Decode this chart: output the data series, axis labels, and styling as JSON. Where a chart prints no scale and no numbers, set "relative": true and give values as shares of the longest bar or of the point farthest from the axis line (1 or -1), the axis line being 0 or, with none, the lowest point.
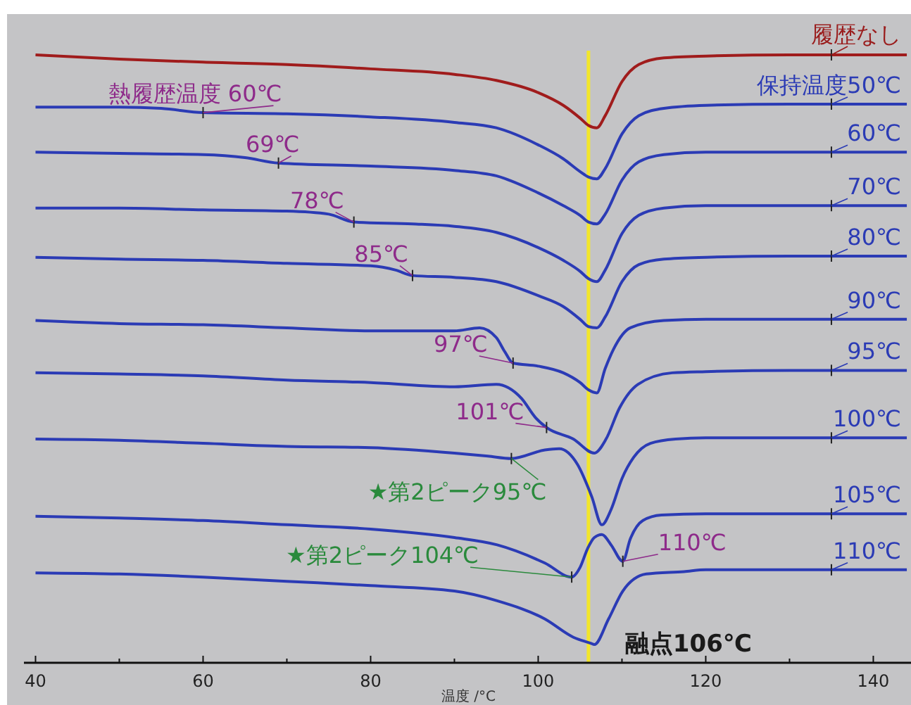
{
  "chart_data": {
    "type": "line",
    "relative": true,
    "xlabel": "温度 /°C",
    "xlim": [
      36.6,
      144.5
    ],
    "xticks": [
      40,
      {
        "value": 50,
        "label": null
      },
      60,
      {
        "value": 70,
        "label": null
      },
      80,
      {
        "value": 90,
        "label": null
      },
      100,
      {
        "value": 110,
        "label": null
      },
      120,
      {
        "value": 130,
        "label": null
      },
      140
    ],
    "grid": false,
    "marker": "none",
    "line_style": "solid",
    "ref_lines": [
      {
        "axis": "x",
        "value": 106,
        "label": "融点106℃",
        "color": "#f2e62a"
      }
    ],
    "series": [
      {
        "color": "#a01c1c",
        "x": [
          40,
          50,
          60,
          70,
          80,
          90,
          95,
          100,
          103,
          105,
          106,
          107,
          108,
          110,
          112,
          115,
          120,
          130,
          140,
          144
        ],
        "values": [
          1.0,
          0.993,
          0.988,
          0.984,
          0.977,
          0.968,
          0.958,
          0.938,
          0.917,
          0.896,
          0.884,
          0.88,
          0.9,
          0.956,
          0.984,
          0.995,
          0.998,
          1.0,
          1.0,
          1.0
        ]
      },
      {
        "color": "#2b3bb5",
        "x": [
          40,
          50,
          55,
          60,
          70,
          80,
          90,
          95,
          100,
          103,
          105,
          106,
          107,
          108,
          110,
          112,
          115,
          120,
          130,
          140,
          144
        ],
        "values": [
          0.914,
          0.914,
          0.912,
          0.905,
          0.903,
          0.898,
          0.889,
          0.88,
          0.852,
          0.829,
          0.808,
          0.799,
          0.796,
          0.813,
          0.87,
          0.9,
          0.912,
          0.917,
          0.919,
          0.919,
          0.919
        ]
      },
      {
        "color": "#2b3bb5",
        "x": [
          40,
          50,
          60,
          65,
          69,
          80,
          90,
          95,
          100,
          103,
          105,
          106,
          107,
          108,
          110,
          112,
          115,
          120,
          130,
          140,
          144
        ],
        "values": [
          0.84,
          0.838,
          0.836,
          0.831,
          0.822,
          0.817,
          0.81,
          0.801,
          0.773,
          0.752,
          0.736,
          0.725,
          0.722,
          0.738,
          0.794,
          0.824,
          0.836,
          0.84,
          0.84,
          0.84,
          0.84
        ]
      },
      {
        "color": "#2b3bb5",
        "x": [
          40,
          50,
          60,
          70,
          75,
          78,
          85,
          90,
          95,
          100,
          103,
          105,
          106,
          107,
          108,
          110,
          112,
          115,
          120,
          130,
          140,
          144
        ],
        "values": [
          0.748,
          0.748,
          0.745,
          0.743,
          0.738,
          0.725,
          0.722,
          0.718,
          0.708,
          0.683,
          0.662,
          0.644,
          0.632,
          0.627,
          0.646,
          0.706,
          0.736,
          0.748,
          0.752,
          0.752,
          0.752,
          0.752
        ]
      },
      {
        "color": "#2b3bb5",
        "x": [
          40,
          50,
          60,
          70,
          80,
          83,
          85,
          90,
          95,
          100,
          103,
          105,
          106,
          107,
          108,
          110,
          112,
          115,
          120,
          130,
          140,
          144
        ],
        "values": [
          0.667,
          0.664,
          0.662,
          0.657,
          0.653,
          0.646,
          0.637,
          0.634,
          0.627,
          0.604,
          0.586,
          0.565,
          0.553,
          0.551,
          0.569,
          0.627,
          0.655,
          0.664,
          0.667,
          0.669,
          0.669,
          0.669
        ]
      },
      {
        "color": "#2b3bb5",
        "x": [
          40,
          50,
          60,
          70,
          80,
          90,
          93,
          95,
          96,
          97,
          100,
          103,
          105,
          106,
          107,
          108,
          109,
          111,
          115,
          120,
          130,
          140,
          144
        ],
        "values": [
          0.563,
          0.558,
          0.556,
          0.551,
          0.546,
          0.546,
          0.551,
          0.535,
          0.512,
          0.493,
          0.488,
          0.477,
          0.461,
          0.449,
          0.444,
          0.484,
          0.516,
          0.551,
          0.563,
          0.565,
          0.565,
          0.565,
          0.565
        ]
      },
      {
        "color": "#2b3bb5",
        "x": [
          40,
          50,
          60,
          70,
          80,
          90,
          95,
          98,
          99.7,
          101,
          104.2,
          106.7,
          108.1,
          109.7,
          111.9,
          116,
          120,
          130,
          140,
          144
        ],
        "values": [
          0.477,
          0.475,
          0.472,
          0.465,
          0.461,
          0.454,
          0.458,
          0.435,
          0.403,
          0.387,
          0.368,
          0.345,
          0.368,
          0.419,
          0.458,
          0.477,
          0.479,
          0.481,
          0.481,
          0.481
        ]
      },
      {
        "color": "#2b3bb5",
        "x": [
          40,
          50,
          60,
          70,
          80,
          90,
          94,
          96.8,
          100.8,
          102.5,
          104.7,
          106.4,
          107.6,
          108.7,
          110,
          111.4,
          113.4,
          116.4,
          120,
          130,
          140,
          144
        ],
        "values": [
          0.368,
          0.366,
          0.361,
          0.356,
          0.354,
          0.345,
          0.34,
          0.336,
          0.35,
          0.352,
          0.326,
          0.273,
          0.227,
          0.252,
          0.303,
          0.338,
          0.361,
          0.368,
          0.37,
          0.37,
          0.37,
          0.37
        ]
      },
      {
        "color": "#2b3bb5",
        "x": [
          40,
          50,
          60,
          70,
          80,
          90,
          95.1,
          100.8,
          104,
          105,
          105.9,
          106.7,
          107.6,
          108.7,
          110.1,
          111,
          112.5,
          114.7,
          120,
          130,
          140,
          144
        ],
        "values": [
          0.241,
          0.238,
          0.234,
          0.227,
          0.22,
          0.206,
          0.194,
          0.164,
          0.141,
          0.157,
          0.188,
          0.206,
          0.211,
          0.194,
          0.167,
          0.204,
          0.234,
          0.243,
          0.245,
          0.245,
          0.245,
          0.245
        ]
      },
      {
        "color": "#2b3bb5",
        "x": [
          40,
          50,
          60,
          70,
          80,
          90,
          95.1,
          100.8,
          104.2,
          106.3,
          106.7,
          108.4,
          110.1,
          112.9,
          117.4,
          120,
          130,
          140,
          144
        ],
        "values": [
          0.148,
          0.146,
          0.141,
          0.134,
          0.127,
          0.118,
          0.102,
          0.072,
          0.042,
          0.032,
          0.03,
          0.072,
          0.118,
          0.146,
          0.15,
          0.153,
          0.153,
          0.153,
          0.153
        ]
      }
    ],
    "annotations": [
      {
        "text": "履歴なし",
        "x": 135,
        "y": 1.0
      },
      {
        "text": "保持温度50℃",
        "x": 135,
        "y": 0.919
      },
      {
        "text": "60℃",
        "x": 135,
        "y": 0.84
      },
      {
        "text": "70℃",
        "x": 135,
        "y": 0.752
      },
      {
        "text": "80℃",
        "x": 135,
        "y": 0.669
      },
      {
        "text": "90℃",
        "x": 135,
        "y": 0.565
      },
      {
        "text": "95℃",
        "x": 135,
        "y": 0.481
      },
      {
        "text": "100℃",
        "x": 135,
        "y": 0.37
      },
      {
        "text": "105℃",
        "x": 135,
        "y": 0.245
      },
      {
        "text": "110℃",
        "x": 135,
        "y": 0.153
      },
      {
        "text": "熱履歴温度 60℃",
        "x": 60,
        "y": 0.905
      },
      {
        "text": "69℃",
        "x": 69,
        "y": 0.822
      },
      {
        "text": "78℃",
        "x": 78,
        "y": 0.725
      },
      {
        "text": "85℃",
        "x": 85,
        "y": 0.637
      },
      {
        "text": "97℃",
        "x": 97,
        "y": 0.493
      },
      {
        "text": "101℃",
        "x": 101,
        "y": 0.387
      },
      {
        "text": "★第2ピーク95℃",
        "x": 96.8,
        "y": 0.336
      },
      {
        "text": "★第2ピーク104℃",
        "x": 104,
        "y": 0.141
      },
      {
        "text": "110℃",
        "x": 110.1,
        "y": 0.167
      }
    ]
  }
}
